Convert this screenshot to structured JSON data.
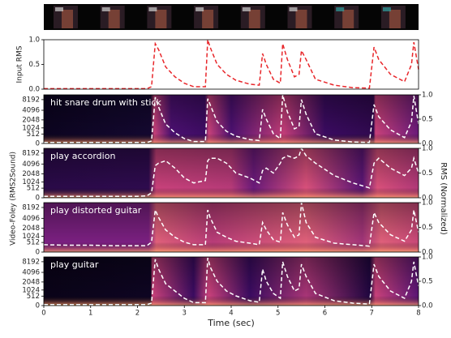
{
  "shared_labels": {
    "ylabel": "Video-Foley (RMS2Sound)",
    "y2label": "RMS (Normalized)"
  },
  "chart_data": [
    {
      "type": "line",
      "ylabel": "Input RMS",
      "x": [
        0,
        0.5,
        1,
        1.5,
        2,
        2.2,
        2.3,
        2.38,
        2.45,
        2.6,
        2.8,
        3.0,
        3.2,
        3.45,
        3.5,
        3.55,
        3.7,
        3.9,
        4.1,
        4.4,
        4.6,
        4.67,
        4.75,
        4.9,
        5.05,
        5.1,
        5.2,
        5.35,
        5.45,
        5.5,
        5.6,
        5.8,
        6.2,
        6.6,
        6.95,
        7.05,
        7.15,
        7.4,
        7.7,
        7.85,
        7.9,
        8.0
      ],
      "series": [
        {
          "color": "#e8262a",
          "values": [
            0.01,
            0.01,
            0.01,
            0.01,
            0.01,
            0.01,
            0.05,
            0.92,
            0.8,
            0.45,
            0.25,
            0.12,
            0.05,
            0.05,
            1.0,
            0.85,
            0.5,
            0.3,
            0.18,
            0.1,
            0.08,
            0.72,
            0.5,
            0.2,
            0.12,
            0.92,
            0.6,
            0.25,
            0.3,
            0.78,
            0.6,
            0.2,
            0.08,
            0.03,
            0.02,
            0.85,
            0.6,
            0.3,
            0.15,
            0.5,
            0.95,
            0.4
          ]
        }
      ],
      "xlim": [
        0,
        8
      ],
      "ylim": [
        0,
        1
      ],
      "yticks": [
        {
          "value": 0,
          "label": "0.0"
        },
        {
          "value": 0.5,
          "label": "0.5"
        },
        {
          "value": 1,
          "label": "1.0"
        }
      ]
    },
    {
      "type": "spectrogram",
      "label": "hit snare drum with stick",
      "x": [
        0,
        0.5,
        1,
        1.5,
        2,
        2.2,
        2.3,
        2.38,
        2.45,
        2.6,
        2.8,
        3.0,
        3.2,
        3.45,
        3.5,
        3.55,
        3.7,
        3.9,
        4.1,
        4.4,
        4.6,
        4.67,
        4.75,
        4.9,
        5.05,
        5.1,
        5.2,
        5.35,
        5.45,
        5.5,
        5.6,
        5.8,
        6.2,
        6.6,
        6.95,
        7.05,
        7.15,
        7.4,
        7.7,
        7.85,
        7.9,
        8.0
      ],
      "series": [
        {
          "color": "#ffffff",
          "axis": "y2",
          "values": [
            0.02,
            0.02,
            0.02,
            0.02,
            0.02,
            0.02,
            0.05,
            0.95,
            0.75,
            0.4,
            0.22,
            0.1,
            0.04,
            0.04,
            0.92,
            0.8,
            0.45,
            0.25,
            0.15,
            0.08,
            0.06,
            0.7,
            0.5,
            0.2,
            0.1,
            1.0,
            0.65,
            0.3,
            0.35,
            0.9,
            0.6,
            0.2,
            0.07,
            0.03,
            0.02,
            0.8,
            0.55,
            0.28,
            0.12,
            0.45,
            0.98,
            0.4
          ]
        }
      ],
      "xlim": [
        0,
        8
      ],
      "ylim": [
        0,
        11025
      ],
      "yscale": "mel",
      "yticks": [
        0,
        512,
        1024,
        2048,
        4096,
        8192
      ],
      "y2lim": [
        0,
        1
      ],
      "y2ticks": [
        {
          "value": 0,
          "label": "0.0"
        },
        {
          "value": 0.5,
          "label": "0.5"
        },
        {
          "value": 1,
          "label": "1.0"
        }
      ]
    },
    {
      "type": "spectrogram",
      "label": "play accordion",
      "x": [
        0,
        0.5,
        1,
        1.5,
        2,
        2.2,
        2.3,
        2.38,
        2.45,
        2.6,
        2.8,
        3.0,
        3.2,
        3.45,
        3.5,
        3.55,
        3.7,
        3.9,
        4.1,
        4.4,
        4.6,
        4.67,
        4.75,
        4.9,
        5.05,
        5.1,
        5.2,
        5.35,
        5.45,
        5.5,
        5.6,
        5.8,
        6.2,
        6.6,
        6.95,
        7.05,
        7.15,
        7.4,
        7.7,
        7.85,
        7.9,
        8.0
      ],
      "series": [
        {
          "color": "#ffffff",
          "axis": "y2",
          "values": [
            0.03,
            0.03,
            0.03,
            0.03,
            0.03,
            0.04,
            0.1,
            0.65,
            0.7,
            0.75,
            0.6,
            0.4,
            0.3,
            0.35,
            0.75,
            0.8,
            0.8,
            0.7,
            0.5,
            0.4,
            0.3,
            0.55,
            0.6,
            0.5,
            0.7,
            0.8,
            0.85,
            0.8,
            0.85,
            1.0,
            0.85,
            0.7,
            0.45,
            0.3,
            0.2,
            0.7,
            0.8,
            0.6,
            0.45,
            0.6,
            0.8,
            0.5
          ]
        }
      ],
      "xlim": [
        0,
        8
      ],
      "ylim": [
        0,
        11025
      ],
      "yscale": "mel",
      "yticks": [
        0,
        512,
        1024,
        2048,
        4096,
        8192
      ],
      "y2lim": [
        0,
        1
      ],
      "y2ticks": [
        {
          "value": 0,
          "label": "0.0"
        },
        {
          "value": 0.5,
          "label": "0.5"
        },
        {
          "value": 1,
          "label": "1.0"
        }
      ]
    },
    {
      "type": "spectrogram",
      "label": "play distorted guitar",
      "x": [
        0,
        0.5,
        1,
        1.5,
        2,
        2.2,
        2.3,
        2.38,
        2.45,
        2.6,
        2.8,
        3.0,
        3.2,
        3.45,
        3.5,
        3.55,
        3.7,
        3.9,
        4.1,
        4.4,
        4.6,
        4.67,
        4.75,
        4.9,
        5.05,
        5.1,
        5.2,
        5.35,
        5.45,
        5.5,
        5.6,
        5.8,
        6.2,
        6.6,
        6.95,
        7.05,
        7.15,
        7.4,
        7.7,
        7.85,
        7.9,
        8.0
      ],
      "series": [
        {
          "color": "#ffffff",
          "axis": "y2",
          "values": [
            0.15,
            0.14,
            0.14,
            0.13,
            0.13,
            0.13,
            0.2,
            0.85,
            0.7,
            0.45,
            0.3,
            0.2,
            0.15,
            0.15,
            0.85,
            0.7,
            0.4,
            0.3,
            0.22,
            0.18,
            0.15,
            0.6,
            0.45,
            0.25,
            0.2,
            0.8,
            0.55,
            0.3,
            0.35,
            1.0,
            0.6,
            0.3,
            0.18,
            0.15,
            0.12,
            0.8,
            0.6,
            0.35,
            0.22,
            0.45,
            0.85,
            0.4
          ]
        }
      ],
      "xlim": [
        0,
        8
      ],
      "ylim": [
        0,
        11025
      ],
      "yscale": "mel",
      "yticks": [
        0,
        512,
        1024,
        2048,
        4096,
        8192
      ],
      "y2lim": [
        0,
        1
      ],
      "y2ticks": [
        {
          "value": 0,
          "label": "0.0"
        },
        {
          "value": 0.5,
          "label": "0.5"
        },
        {
          "value": 1,
          "label": "1.0"
        }
      ]
    },
    {
      "type": "spectrogram",
      "label": "play guitar",
      "x": [
        0,
        0.5,
        1,
        1.5,
        2,
        2.2,
        2.3,
        2.38,
        2.45,
        2.6,
        2.8,
        3.0,
        3.2,
        3.45,
        3.5,
        3.55,
        3.7,
        3.9,
        4.1,
        4.4,
        4.6,
        4.67,
        4.75,
        4.9,
        5.05,
        5.1,
        5.2,
        5.35,
        5.45,
        5.5,
        5.6,
        5.8,
        6.2,
        6.6,
        6.95,
        7.05,
        7.15,
        7.4,
        7.7,
        7.85,
        7.9,
        8.0
      ],
      "series": [
        {
          "color": "#ffffff",
          "axis": "y2",
          "values": [
            0.02,
            0.02,
            0.02,
            0.02,
            0.02,
            0.02,
            0.05,
            0.95,
            0.75,
            0.45,
            0.3,
            0.15,
            0.06,
            0.06,
            0.98,
            0.8,
            0.5,
            0.3,
            0.2,
            0.1,
            0.07,
            0.75,
            0.5,
            0.25,
            0.15,
            0.9,
            0.6,
            0.3,
            0.35,
            0.85,
            0.6,
            0.25,
            0.1,
            0.05,
            0.03,
            0.85,
            0.6,
            0.3,
            0.15,
            0.5,
            0.9,
            0.4
          ]
        }
      ],
      "xlim": [
        0,
        8
      ],
      "ylim": [
        0,
        11025
      ],
      "yscale": "mel",
      "yticks": [
        0,
        512,
        1024,
        2048,
        4096,
        8192
      ],
      "y2lim": [
        0,
        1
      ],
      "y2ticks": [
        {
          "value": 0,
          "label": "0.0"
        },
        {
          "value": 0.5,
          "label": "0.5"
        },
        {
          "value": 1,
          "label": "1.0"
        }
      ],
      "xticks": [
        0,
        1,
        2,
        3,
        4,
        5,
        6,
        7,
        8
      ],
      "xlabel": "Time (sec)"
    }
  ]
}
